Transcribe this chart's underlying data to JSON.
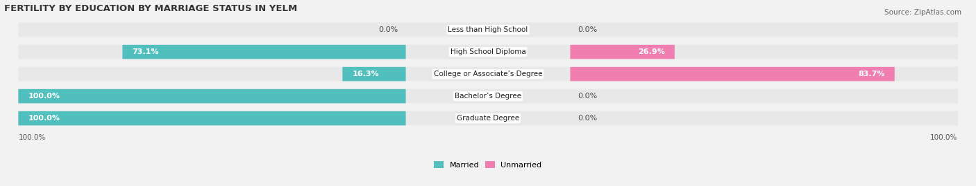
{
  "title": "FERTILITY BY EDUCATION BY MARRIAGE STATUS IN YELM",
  "source": "Source: ZipAtlas.com",
  "categories": [
    "Less than High School",
    "High School Diploma",
    "College or Associate’s Degree",
    "Bachelor’s Degree",
    "Graduate Degree"
  ],
  "married": [
    0.0,
    73.1,
    16.3,
    100.0,
    100.0
  ],
  "unmarried": [
    0.0,
    26.9,
    83.7,
    0.0,
    0.0
  ],
  "married_color": "#52BFBF",
  "unmarried_color": "#F07EB0",
  "bg_color": "#f2f2f2",
  "row_bg_color": "#e8e8e8",
  "title_fontsize": 9.5,
  "source_fontsize": 7.5,
  "label_fontsize": 8,
  "category_fontsize": 7.5,
  "legend_fontsize": 8,
  "axis_label_fontsize": 7.5
}
